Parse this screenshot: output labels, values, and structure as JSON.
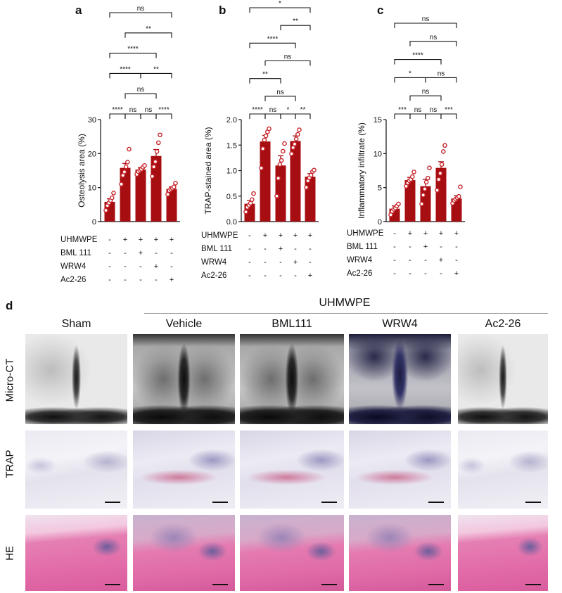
{
  "chart_data": [
    {
      "panel": "a",
      "type": "bar",
      "ylabel": "Osteolysis area (%)",
      "ylim": [
        0,
        30
      ],
      "yticks": [
        "0",
        "10",
        "20",
        "30"
      ],
      "categories": [
        "Sham",
        "UHMWPE",
        "UHMWPE+BML 111",
        "UHMWPE+WRW4",
        "UHMWPE+Ac2-26"
      ],
      "values": [
        5.8,
        15.8,
        15.3,
        19.3,
        9.6
      ],
      "errors": [
        0.9,
        1.3,
        0.6,
        1.9,
        0.6
      ],
      "points": [
        [
          3.3,
          4.7,
          5.5,
          6.2,
          7.0,
          8.4
        ],
        [
          11.0,
          13.6,
          14.6,
          16.1,
          17.5,
          21.3
        ],
        [
          13.9,
          14.7,
          15.1,
          15.4,
          16.0,
          16.5
        ],
        [
          13.3,
          16.1,
          17.6,
          20.6,
          23.2,
          25.5
        ],
        [
          8.0,
          9.1,
          9.5,
          9.8,
          10.2,
          11.3
        ]
      ],
      "comparisons": [
        {
          "from": 0,
          "to": 1,
          "label": "****"
        },
        {
          "from": 1,
          "to": 2,
          "label": "ns"
        },
        {
          "from": 2,
          "to": 3,
          "label": "ns"
        },
        {
          "from": 1,
          "to": 3,
          "label": "ns"
        },
        {
          "from": 3,
          "to": 4,
          "label": "****"
        },
        {
          "from": 0,
          "to": 2,
          "label": "****"
        },
        {
          "from": 2,
          "to": 4,
          "label": "**"
        },
        {
          "from": 0,
          "to": 3,
          "label": "****"
        },
        {
          "from": 1,
          "to": 4,
          "label": "**"
        },
        {
          "from": 0,
          "to": 4,
          "label": "ns"
        }
      ]
    },
    {
      "panel": "b",
      "type": "bar",
      "ylabel": "TRAP-stained area (%)",
      "ylim": [
        0,
        2.0
      ],
      "yticks": [
        "0.0",
        "0.5",
        "1.0",
        "1.5",
        "2.0"
      ],
      "categories": [
        "Sham",
        "UHMWPE",
        "UHMWPE+BML 111",
        "UHMWPE+WRW4",
        "UHMWPE+Ac2-26"
      ],
      "values": [
        0.35,
        1.57,
        1.1,
        1.58,
        0.88
      ],
      "errors": [
        0.06,
        0.12,
        0.19,
        0.1,
        0.06
      ],
      "points": [
        [
          0.19,
          0.28,
          0.32,
          0.36,
          0.43,
          0.55
        ],
        [
          1.05,
          1.43,
          1.6,
          1.68,
          1.76,
          1.82
        ],
        [
          0.5,
          0.85,
          1.12,
          1.2,
          1.38,
          1.53
        ],
        [
          1.33,
          1.45,
          1.52,
          1.62,
          1.71,
          1.8
        ],
        [
          0.67,
          0.8,
          0.86,
          0.91,
          0.98,
          1.01
        ]
      ],
      "comparisons": [
        {
          "from": 0,
          "to": 1,
          "label": "****"
        },
        {
          "from": 1,
          "to": 2,
          "label": "ns"
        },
        {
          "from": 2,
          "to": 3,
          "label": "*"
        },
        {
          "from": 3,
          "to": 4,
          "label": "**"
        },
        {
          "from": 1,
          "to": 3,
          "label": "ns"
        },
        {
          "from": 0,
          "to": 2,
          "label": "**"
        },
        {
          "from": 1,
          "to": 4,
          "label": "ns"
        },
        {
          "from": 0,
          "to": 3,
          "label": "****"
        },
        {
          "from": 2,
          "to": 4,
          "label": "**"
        },
        {
          "from": 0,
          "to": 4,
          "label": "*"
        }
      ]
    },
    {
      "panel": "c",
      "type": "bar",
      "ylabel": "Inflammatory infiltrate (%)",
      "ylim": [
        0,
        15
      ],
      "yticks": [
        "0",
        "5",
        "10",
        "15"
      ],
      "categories": [
        "Sham",
        "UHMWPE",
        "UHMWPE+BML 111",
        "UHMWPE+WRW4",
        "UHMWPE+Ac2-26"
      ],
      "values": [
        1.9,
        6.1,
        5.2,
        7.9,
        3.4
      ],
      "errors": [
        0.4,
        0.4,
        1.0,
        0.9,
        0.4
      ],
      "points": [
        [
          1.0,
          1.5,
          1.8,
          2.0,
          2.3,
          2.6
        ],
        [
          5.2,
          5.7,
          6.0,
          6.2,
          6.6,
          7.3
        ],
        [
          2.6,
          3.9,
          4.8,
          5.8,
          6.4,
          7.9
        ],
        [
          4.6,
          6.2,
          7.1,
          8.4,
          10.3,
          11.2
        ],
        [
          2.7,
          3.1,
          3.3,
          3.5,
          3.7,
          5.1
        ]
      ],
      "comparisons": [
        {
          "from": 0,
          "to": 1,
          "label": "***"
        },
        {
          "from": 1,
          "to": 2,
          "label": "ns"
        },
        {
          "from": 2,
          "to": 3,
          "label": "ns"
        },
        {
          "from": 1,
          "to": 3,
          "label": "ns"
        },
        {
          "from": 3,
          "to": 4,
          "label": "***"
        },
        {
          "from": 0,
          "to": 2,
          "label": "*"
        },
        {
          "from": 2,
          "to": 4,
          "label": "ns"
        },
        {
          "from": 0,
          "to": 3,
          "label": "****"
        },
        {
          "from": 1,
          "to": 4,
          "label": "ns"
        },
        {
          "from": 0,
          "to": 4,
          "label": "ns"
        }
      ]
    }
  ],
  "conditions": {
    "rows": [
      {
        "name": "UHMWPE",
        "signs": [
          "-",
          "+",
          "+",
          "+",
          "+"
        ]
      },
      {
        "name": "BML 111",
        "signs": [
          "-",
          "-",
          "+",
          "-",
          "-"
        ]
      },
      {
        "name": "WRW4",
        "signs": [
          "-",
          "-",
          "-",
          "+",
          "-"
        ]
      },
      {
        "name": "Ac2-26",
        "signs": [
          "-",
          "-",
          "-",
          "-",
          "+"
        ]
      }
    ]
  },
  "style": {
    "bar_color": "#a70e12",
    "point_color": "#c8252b",
    "text_color": "#111111"
  },
  "panels": {
    "a": "a",
    "b": "b",
    "c": "c",
    "d": "d"
  },
  "panel_d": {
    "group_label": "UHMWPE",
    "columns": [
      "Sham",
      "Vehicle",
      "BML111",
      "WRW4",
      "Ac2-26"
    ],
    "rows": [
      "Micro-CT",
      "TRAP",
      "HE"
    ]
  }
}
